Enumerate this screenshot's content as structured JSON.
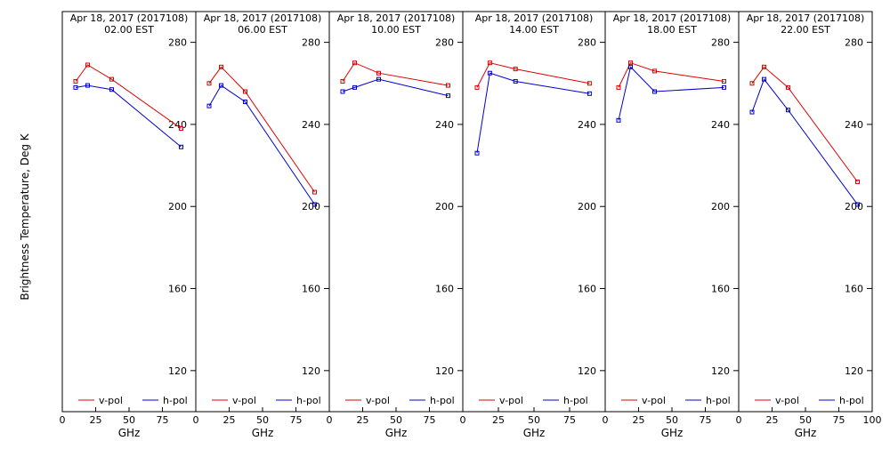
{
  "chart_data": {
    "type": "line",
    "ylabel": "Brightness Temperature, Deg K",
    "xlabel": "GHz",
    "xlim": [
      0,
      100
    ],
    "ylim": [
      100,
      295
    ],
    "y_ticks": [
      120,
      160,
      200,
      240,
      280
    ],
    "x_ticks": [
      0,
      25,
      50,
      75,
      100
    ],
    "colors": {
      "v_pol": "#dd0000",
      "h_pol": "#0000cc"
    },
    "legend": {
      "placement": "bottom",
      "entries": [
        "v-pol",
        "h-pol"
      ]
    },
    "panels": [
      {
        "title_line1": "Apr 18, 2017 (2017108)",
        "title_line2": "02.00 EST",
        "series": [
          {
            "name": "v-pol",
            "x": [
              10,
              19,
              37,
              89
            ],
            "y": [
              261,
              269,
              262,
              238
            ]
          },
          {
            "name": "h-pol",
            "x": [
              10,
              19,
              37,
              89
            ],
            "y": [
              258,
              259,
              257,
              229
            ]
          }
        ]
      },
      {
        "title_line1": "Apr 18, 2017 (2017108)",
        "title_line2": "06.00 EST",
        "series": [
          {
            "name": "v-pol",
            "x": [
              10,
              19,
              37,
              89
            ],
            "y": [
              260,
              268,
              256,
              207
            ]
          },
          {
            "name": "h-pol",
            "x": [
              10,
              19,
              37,
              89
            ],
            "y": [
              249,
              259,
              251,
              201
            ]
          }
        ]
      },
      {
        "title_line1": "Apr 18, 2017 (2017108)",
        "title_line2": "10.00 EST",
        "series": [
          {
            "name": "v-pol",
            "x": [
              10,
              19,
              37,
              89
            ],
            "y": [
              261,
              270,
              265,
              259
            ]
          },
          {
            "name": "h-pol",
            "x": [
              10,
              19,
              37,
              89
            ],
            "y": [
              256,
              258,
              262,
              254
            ]
          }
        ]
      },
      {
        "title_line1": "Apr 18, 2017 (2017108)",
        "title_line2": "14.00 EST",
        "series": [
          {
            "name": "v-pol",
            "x": [
              10,
              19,
              37,
              89
            ],
            "y": [
              258,
              270,
              267,
              260
            ]
          },
          {
            "name": "h-pol",
            "x": [
              10,
              19,
              37,
              89
            ],
            "y": [
              226,
              265,
              261,
              255
            ]
          }
        ]
      },
      {
        "title_line1": "Apr 18, 2017 (2017108)",
        "title_line2": "18.00 EST",
        "series": [
          {
            "name": "v-pol",
            "x": [
              10,
              19,
              37,
              89
            ],
            "y": [
              258,
              270,
              266,
              261
            ]
          },
          {
            "name": "h-pol",
            "x": [
              10,
              19,
              37,
              89
            ],
            "y": [
              242,
              268,
              256,
              258
            ]
          }
        ]
      },
      {
        "title_line1": "Apr 18, 2017 (2017108)",
        "title_line2": "22.00 EST",
        "series": [
          {
            "name": "v-pol",
            "x": [
              10,
              19,
              37,
              89
            ],
            "y": [
              260,
              268,
              258,
              212
            ]
          },
          {
            "name": "h-pol",
            "x": [
              10,
              19,
              37,
              89
            ],
            "y": [
              246,
              262,
              247,
              201
            ]
          }
        ]
      }
    ]
  }
}
